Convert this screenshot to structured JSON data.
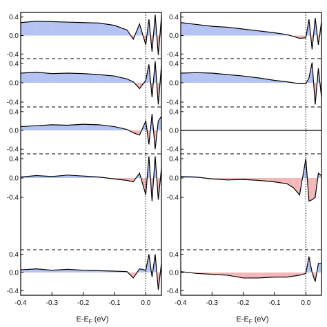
{
  "chart_data": {
    "type": "area",
    "layout": "two columns of stacked difference plots sharing the energy axis",
    "xlabel": {
      "main": "E-E",
      "subscript": "F",
      "unit": " (eV)"
    },
    "xlim": [
      -0.4,
      0.05
    ],
    "x_ticks": [
      -0.4,
      -0.3,
      -0.2,
      -0.1,
      0.0
    ],
    "x_tick_labels": [
      "-0.4",
      "-0.3",
      "-0.2",
      "-0.1",
      "0.0"
    ],
    "ylim": [
      -0.5,
      0.5
    ],
    "y_ticks": [
      0.4,
      0.0,
      -0.4
    ],
    "y_tick_labels": [
      "0.4",
      "0.0",
      "-0.4"
    ],
    "fermi_line": {
      "x": 0.0,
      "style": "dotted"
    },
    "separator_style": "dashed",
    "colors": {
      "positive_fill": "#b4c3f2",
      "negative_fill": "#f2b8b8",
      "line": "#000000",
      "frame": "#000000"
    },
    "columns": [
      {
        "panels": [
          {
            "x": [
              -0.4,
              -0.35,
              -0.3,
              -0.25,
              -0.2,
              -0.15,
              -0.1,
              -0.06,
              -0.04,
              -0.02,
              0.0,
              0.01,
              0.02,
              0.03,
              0.04,
              0.05
            ],
            "y": [
              0.28,
              0.31,
              0.3,
              0.29,
              0.28,
              0.27,
              0.22,
              0.12,
              -0.08,
              0.25,
              -0.2,
              0.35,
              -0.35,
              0.45,
              -0.42,
              0.4
            ]
          },
          {
            "x": [
              -0.4,
              -0.35,
              -0.3,
              -0.25,
              -0.2,
              -0.15,
              -0.1,
              -0.06,
              -0.04,
              -0.02,
              0.0,
              0.01,
              0.02,
              0.03,
              0.04,
              0.05
            ],
            "y": [
              0.2,
              0.22,
              0.19,
              0.2,
              0.19,
              0.17,
              0.14,
              0.08,
              0.02,
              -0.12,
              0.05,
              0.38,
              -0.3,
              0.45,
              -0.45,
              0.35
            ]
          },
          {
            "x": [
              -0.4,
              -0.35,
              -0.3,
              -0.25,
              -0.2,
              -0.15,
              -0.1,
              -0.06,
              -0.04,
              -0.02,
              0.0,
              0.01,
              0.02,
              0.03,
              0.04,
              0.05
            ],
            "y": [
              0.08,
              0.1,
              0.12,
              0.11,
              0.13,
              0.12,
              0.08,
              0.02,
              -0.05,
              -0.1,
              0.2,
              -0.3,
              0.35,
              -0.4,
              0.2,
              0.3
            ]
          },
          {
            "x": [
              -0.4,
              -0.35,
              -0.3,
              -0.25,
              -0.2,
              -0.15,
              -0.1,
              -0.06,
              -0.04,
              -0.02,
              0.0,
              0.01,
              0.02,
              0.03,
              0.04,
              0.05
            ],
            "y": [
              0.02,
              0.05,
              0.03,
              0.06,
              0.04,
              0.02,
              -0.02,
              -0.05,
              -0.08,
              0.1,
              -0.35,
              0.45,
              -0.48,
              0.45,
              -0.45,
              0.2
            ]
          },
          {
            "x": [
              -0.4,
              -0.35,
              -0.3,
              -0.25,
              -0.2,
              -0.15,
              -0.1,
              -0.06,
              -0.04,
              -0.02,
              0.0,
              0.01,
              0.02,
              0.03,
              0.04,
              0.05
            ],
            "y": [
              0.06,
              0.08,
              0.05,
              0.07,
              0.05,
              0.04,
              0.03,
              0.02,
              -0.12,
              0.08,
              0.05,
              0.4,
              -0.1,
              0.4,
              -0.38,
              0.2
            ]
          }
        ]
      },
      {
        "panels": [
          {
            "x": [
              -0.4,
              -0.35,
              -0.3,
              -0.25,
              -0.2,
              -0.15,
              -0.1,
              -0.06,
              -0.04,
              -0.02,
              0.0,
              0.01,
              0.02,
              0.03,
              0.04,
              0.05
            ],
            "y": [
              0.28,
              0.24,
              0.2,
              0.18,
              0.14,
              0.1,
              0.06,
              0.02,
              -0.02,
              -0.06,
              -0.05,
              0.35,
              -0.3,
              0.38,
              -0.2,
              0.3
            ]
          },
          {
            "x": [
              -0.4,
              -0.35,
              -0.3,
              -0.25,
              -0.2,
              -0.15,
              -0.1,
              -0.06,
              -0.04,
              -0.02,
              0.0,
              0.01,
              0.02,
              0.03,
              0.04,
              0.05
            ],
            "y": [
              0.2,
              0.21,
              0.2,
              0.17,
              0.14,
              0.1,
              0.05,
              0.02,
              0.0,
              -0.02,
              -0.02,
              0.1,
              0.42,
              -0.45,
              0.3,
              -0.3
            ]
          },
          {
            "x": [
              -0.4,
              -0.35,
              -0.3,
              -0.25,
              -0.2,
              -0.15,
              -0.1,
              -0.06,
              -0.04,
              -0.02,
              0.0,
              0.01,
              0.02,
              0.03,
              0.04,
              0.05
            ],
            "y": [
              0.0,
              0.0,
              0.0,
              0.0,
              0.0,
              0.0,
              0.0,
              0.0,
              0.0,
              0.0,
              0.0,
              0.0,
              0.0,
              0.0,
              0.0,
              0.0
            ]
          },
          {
            "x": [
              -0.4,
              -0.35,
              -0.3,
              -0.25,
              -0.2,
              -0.15,
              -0.1,
              -0.06,
              -0.04,
              -0.02,
              0.0,
              0.01,
              0.02,
              0.03,
              0.04,
              0.05
            ],
            "y": [
              0.03,
              0.02,
              -0.02,
              -0.04,
              -0.03,
              -0.05,
              -0.08,
              -0.12,
              -0.2,
              -0.35,
              0.4,
              -0.48,
              -0.45,
              -0.4,
              0.1,
              0.05
            ]
          },
          {
            "x": [
              -0.4,
              -0.35,
              -0.3,
              -0.25,
              -0.2,
              -0.15,
              -0.1,
              -0.06,
              -0.04,
              -0.02,
              0.0,
              0.01,
              0.02,
              0.03,
              0.04,
              0.05
            ],
            "y": [
              0.02,
              -0.02,
              -0.04,
              -0.06,
              -0.12,
              -0.12,
              -0.1,
              -0.1,
              -0.08,
              -0.06,
              -0.02,
              0.35,
              0.0,
              -0.2,
              0.2,
              0.2
            ]
          }
        ]
      }
    ]
  }
}
